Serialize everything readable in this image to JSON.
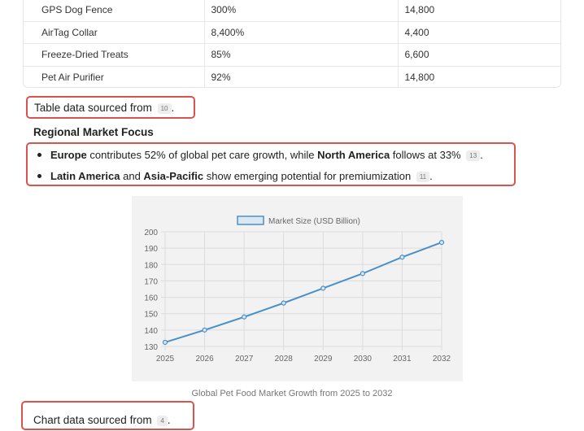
{
  "table": {
    "rows": [
      [
        "GPS Dog Fence",
        "300%",
        "14,800"
      ],
      [
        "AirTag Collar",
        "8,400%",
        "4,400"
      ],
      [
        "Freeze-Dried Treats",
        "85%",
        "6,600"
      ],
      [
        "Pet Air Purifier",
        "92%",
        "14,800"
      ]
    ]
  },
  "table_source": {
    "text": "Table data sourced from",
    "cite": "10",
    "end": "."
  },
  "regional": {
    "heading": "Regional Market Focus",
    "b1": {
      "bold1": "Europe",
      "t1": " contributes 52% of global pet care growth, while ",
      "bold2": "North America",
      "t2": " follows at 33%",
      "cite": "13",
      "end": "."
    },
    "b2": {
      "bold1": "Latin America",
      "t1": " and ",
      "bold2": "Asia-Pacific",
      "t2": " show emerging potential for premiumization",
      "cite": "11",
      "end": "."
    }
  },
  "chart_data": {
    "type": "line",
    "x": [
      "2025",
      "2026",
      "2027",
      "2028",
      "2029",
      "2030",
      "2031",
      "2032"
    ],
    "series": [
      {
        "name": "Market Size (USD Billion)",
        "values": [
          132.5,
          140,
          148,
          156.5,
          165.5,
          174.5,
          184.5,
          193.5
        ],
        "color": "#4a90c9"
      }
    ],
    "ylim": [
      130,
      200
    ],
    "yticks": [
      130,
      140,
      150,
      160,
      170,
      180,
      190,
      200
    ],
    "grid": true,
    "legend": "top-center"
  },
  "chart_caption": "Global Pet Food Market Growth from 2025 to 2032",
  "chart_source": {
    "text": "Chart data sourced from",
    "cite": "4",
    "end": "."
  }
}
